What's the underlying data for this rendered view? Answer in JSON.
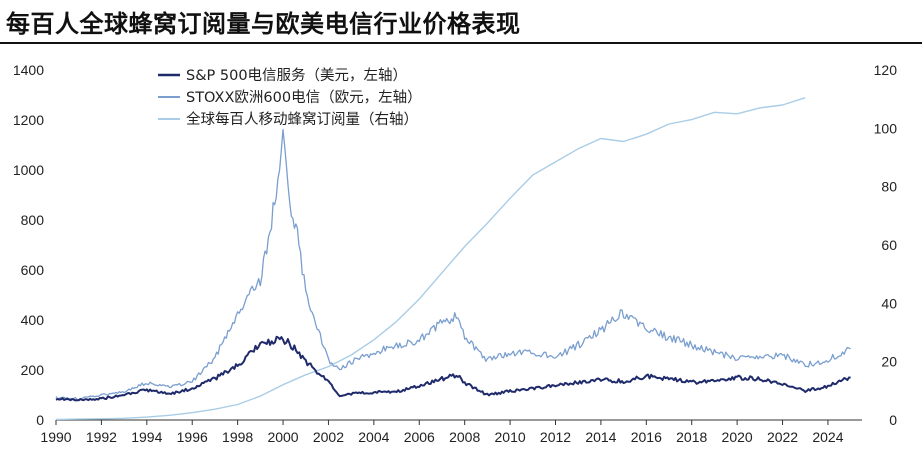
{
  "chart_data": {
    "type": "line",
    "title": "每百人全球蜂窝订阅量与欧美电信行业价格表现",
    "x_ticks": [
      "1990",
      "1992",
      "1994",
      "1996",
      "1998",
      "2000",
      "2002",
      "2004",
      "2006",
      "2008",
      "2010",
      "2012",
      "2014",
      "2016",
      "2018",
      "2020",
      "2022",
      "2024"
    ],
    "y_left_ticks": [
      "0",
      "200",
      "400",
      "600",
      "800",
      "1000",
      "1200",
      "1400"
    ],
    "y_right_ticks": [
      "0",
      "20",
      "40",
      "60",
      "80",
      "100",
      "120"
    ],
    "xlim": [
      1990,
      2025.5
    ],
    "ylim_left": [
      0,
      1400
    ],
    "ylim_right": [
      0,
      120
    ],
    "legend_position": "top-center",
    "grid": false,
    "series": [
      {
        "name": "S&P 500电信服务（美元，左轴）",
        "axis": "left",
        "color": "#1f2a6b",
        "points": [
          [
            1990,
            85
          ],
          [
            1991,
            80
          ],
          [
            1992,
            85
          ],
          [
            1993,
            100
          ],
          [
            1994,
            120
          ],
          [
            1995,
            105
          ],
          [
            1996,
            125
          ],
          [
            1997,
            165
          ],
          [
            1998,
            220
          ],
          [
            1999,
            300
          ],
          [
            2000,
            325
          ],
          [
            2000.5,
            290
          ],
          [
            2001,
            235
          ],
          [
            2002,
            150
          ],
          [
            2002.5,
            95
          ],
          [
            2003,
            105
          ],
          [
            2004,
            110
          ],
          [
            2005,
            115
          ],
          [
            2006,
            135
          ],
          [
            2007,
            165
          ],
          [
            2007.7,
            180
          ],
          [
            2008,
            150
          ],
          [
            2009,
            100
          ],
          [
            2010,
            115
          ],
          [
            2011,
            125
          ],
          [
            2012,
            140
          ],
          [
            2013,
            150
          ],
          [
            2014,
            160
          ],
          [
            2015,
            155
          ],
          [
            2016,
            175
          ],
          [
            2017,
            165
          ],
          [
            2018,
            150
          ],
          [
            2019,
            160
          ],
          [
            2020,
            170
          ],
          [
            2021,
            165
          ],
          [
            2022,
            145
          ],
          [
            2023,
            115
          ],
          [
            2024,
            135
          ],
          [
            2025,
            170
          ]
        ]
      },
      {
        "name": "STOXX欧洲600电信（欧元，左轴）",
        "axis": "left",
        "color": "#7a9fcf",
        "points": [
          [
            1990,
            90
          ],
          [
            1991,
            85
          ],
          [
            1992,
            100
          ],
          [
            1993,
            110
          ],
          [
            1994,
            150
          ],
          [
            1995,
            130
          ],
          [
            1996,
            155
          ],
          [
            1997,
            250
          ],
          [
            1998,
            420
          ],
          [
            1999,
            560
          ],
          [
            1999.7,
            900
          ],
          [
            2000,
            1140
          ],
          [
            2000.3,
            850
          ],
          [
            2000.7,
            720
          ],
          [
            2001,
            500
          ],
          [
            2001.5,
            380
          ],
          [
            2002,
            240
          ],
          [
            2002.5,
            200
          ],
          [
            2003,
            230
          ],
          [
            2004,
            270
          ],
          [
            2005,
            300
          ],
          [
            2006,
            320
          ],
          [
            2007,
            390
          ],
          [
            2007.7,
            420
          ],
          [
            2008,
            330
          ],
          [
            2009,
            240
          ],
          [
            2010,
            270
          ],
          [
            2011,
            270
          ],
          [
            2012,
            250
          ],
          [
            2013,
            300
          ],
          [
            2014,
            360
          ],
          [
            2015,
            430
          ],
          [
            2015.5,
            400
          ],
          [
            2016,
            360
          ],
          [
            2017,
            330
          ],
          [
            2018,
            300
          ],
          [
            2019,
            270
          ],
          [
            2020,
            250
          ],
          [
            2021,
            250
          ],
          [
            2022,
            260
          ],
          [
            2023,
            220
          ],
          [
            2024,
            240
          ],
          [
            2025,
            285
          ]
        ]
      },
      {
        "name": "全球每百人移动蜂窝订阅量（右轴）",
        "axis": "right",
        "color": "#a9cde6",
        "points": [
          [
            1990,
            0.2
          ],
          [
            1991,
            0.3
          ],
          [
            1992,
            0.4
          ],
          [
            1993,
            0.6
          ],
          [
            1994,
            1.0
          ],
          [
            1995,
            1.6
          ],
          [
            1996,
            2.5
          ],
          [
            1997,
            3.7
          ],
          [
            1998,
            5.3
          ],
          [
            1999,
            8.2
          ],
          [
            2000,
            12.1
          ],
          [
            2001,
            15.5
          ],
          [
            2002,
            18.3
          ],
          [
            2003,
            22.3
          ],
          [
            2004,
            27.5
          ],
          [
            2005,
            33.8
          ],
          [
            2006,
            41.5
          ],
          [
            2007,
            50.5
          ],
          [
            2008,
            59.5
          ],
          [
            2009,
            67.5
          ],
          [
            2010,
            76.0
          ],
          [
            2011,
            84.0
          ],
          [
            2012,
            88.5
          ],
          [
            2013,
            93.0
          ],
          [
            2014,
            96.5
          ],
          [
            2015,
            95.5
          ],
          [
            2016,
            98.0
          ],
          [
            2017,
            101.5
          ],
          [
            2018,
            103.0
          ],
          [
            2019,
            105.5
          ],
          [
            2020,
            105.0
          ],
          [
            2021,
            107.0
          ],
          [
            2022,
            108.0
          ],
          [
            2023,
            110.5
          ]
        ]
      }
    ]
  }
}
